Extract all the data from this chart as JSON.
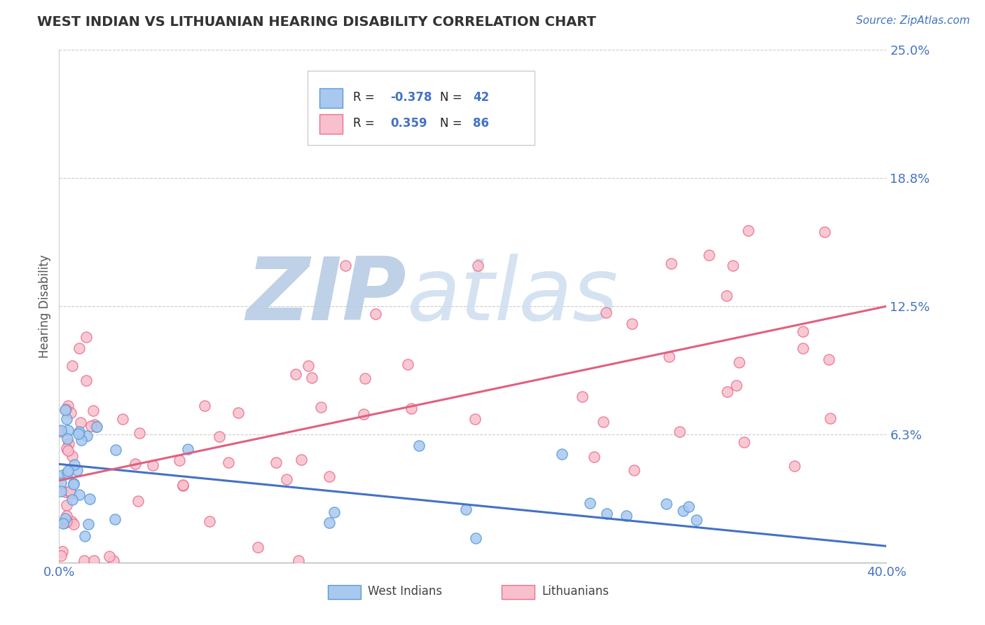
{
  "title": "WEST INDIAN VS LITHUANIAN HEARING DISABILITY CORRELATION CHART",
  "source": "Source: ZipAtlas.com",
  "ylabel": "Hearing Disability",
  "xlim": [
    0.0,
    0.4
  ],
  "ylim": [
    0.0,
    0.25
  ],
  "yticks": [
    0.0,
    0.0625,
    0.125,
    0.1875,
    0.25
  ],
  "ytick_labels": [
    "",
    "6.3%",
    "12.5%",
    "18.8%",
    "25.0%"
  ],
  "west_indian_fill": "#a8c8f0",
  "west_indian_edge": "#5b9bd5",
  "lithuanian_fill": "#f8c0cc",
  "lithuanian_edge": "#e87090",
  "west_indian_line_color": "#4472c4",
  "lithuanian_line_color": "#e06080",
  "background_color": "#ffffff",
  "grid_color": "#cccccc",
  "R_west": -0.378,
  "N_west": 42,
  "R_lith": 0.359,
  "N_lith": 86,
  "west_indian_label": "West Indians",
  "lithuanian_label": "Lithuanians",
  "watermark_zip": "ZIP",
  "watermark_atlas": "atlas",
  "watermark_color": "#ccdcef",
  "title_color": "#333333",
  "axis_label_color": "#4472c4",
  "legend_R_color": "#4472c4",
  "legend_N_color": "#4472c4",
  "west_line_y0": 0.048,
  "west_line_y1": 0.008,
  "lith_line_y0": 0.04,
  "lith_line_y1": 0.125
}
